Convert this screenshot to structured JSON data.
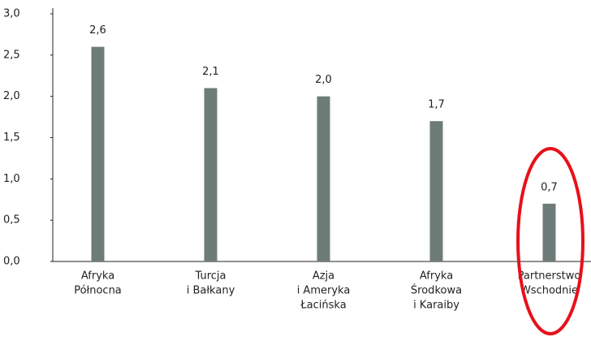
{
  "chart_data": {
    "type": "bar",
    "categories": [
      [
        "Afryka",
        "Północna"
      ],
      [
        "Turcja",
        "i Bałkany"
      ],
      [
        "Azja",
        "i Ameryka",
        "Łacińska"
      ],
      [
        "Afryka",
        "Środkowa",
        "i Karaiby"
      ],
      [
        "Partnerstwo",
        "Wschodnie"
      ]
    ],
    "values": [
      2.6,
      2.1,
      2.0,
      1.7,
      0.7
    ],
    "value_labels": [
      "2,6",
      "2,1",
      "2,0",
      "1,7",
      "0,7"
    ],
    "color": "#6e7c79",
    "ylim": [
      0,
      3
    ],
    "yticks": [
      {
        "value": 0,
        "label": "0,0"
      },
      {
        "value": 0.5,
        "label": "0,5"
      },
      {
        "value": 1,
        "label": "1,0"
      },
      {
        "value": 1.5,
        "label": "1,5"
      },
      {
        "value": 2,
        "label": "2,0"
      },
      {
        "value": 2.5,
        "label": "2,5"
      },
      {
        "value": 3,
        "label": "3,0"
      }
    ]
  }
}
